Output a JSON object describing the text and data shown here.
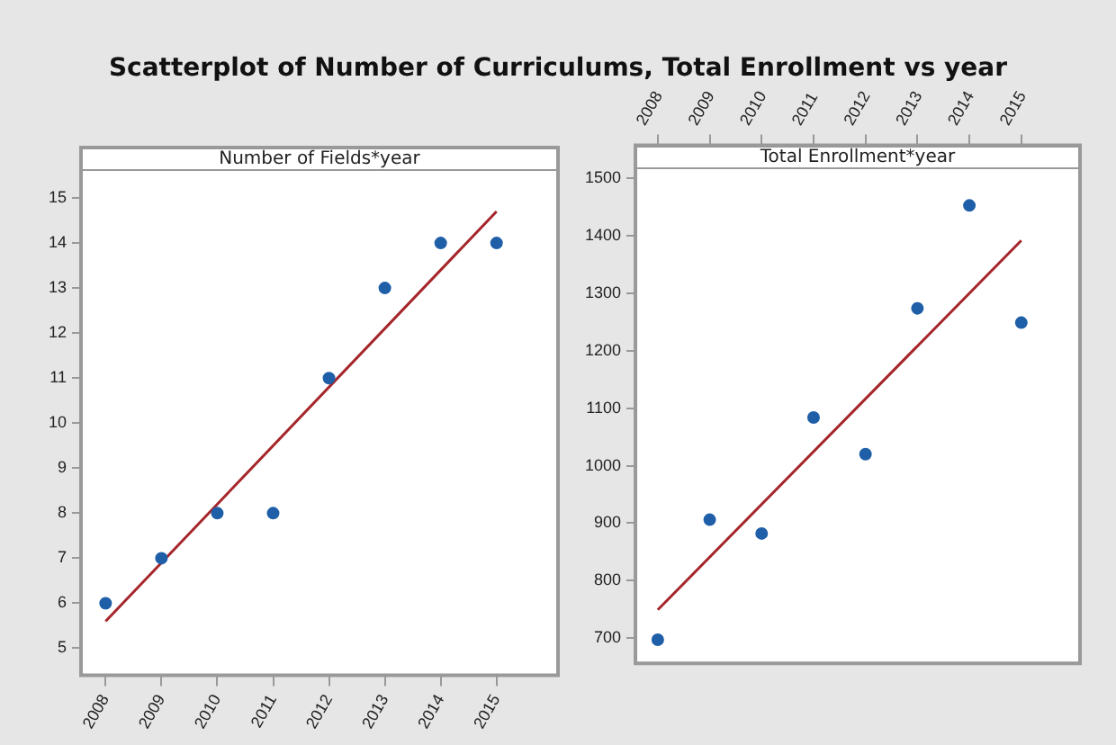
{
  "chart_data": [
    {
      "type": "scatter",
      "title": "Scatterplot of Number of Curriculums, Total Enrollment vs year",
      "subtitle": "Number of Fields*year",
      "xlim": [
        2007.56,
        2016.1
      ],
      "xticks": [
        2008,
        2009,
        2010,
        2011,
        2012,
        2013,
        2014,
        2015
      ],
      "ylim": [
        4.4,
        15.6
      ],
      "yticks": [
        5,
        6,
        7,
        8,
        9,
        10,
        11,
        12,
        13,
        14,
        15
      ],
      "grid": false,
      "legend": false,
      "marker": "circle",
      "series": [
        {
          "color": "#1f5fa8",
          "x": [
            2008,
            2009,
            2010,
            2011,
            2012,
            2013,
            2014,
            2015
          ],
          "values": [
            6,
            7,
            8,
            8,
            11,
            13,
            14,
            14
          ]
        },
        {
          "type": "line",
          "marker": "none",
          "color": "#a5262a",
          "x": [
            2008,
            2015
          ],
          "values": [
            5.6,
            14.7
          ]
        }
      ]
    },
    {
      "type": "scatter",
      "subtitle": "Total Enrollment*year",
      "xlim": [
        2007.57,
        2016.13
      ],
      "xticks": [
        2008,
        2009,
        2010,
        2011,
        2012,
        2013,
        2014,
        2015
      ],
      "ylim": [
        656,
        1517
      ],
      "yticks": [
        700,
        800,
        900,
        1000,
        1100,
        1200,
        1300,
        1400,
        1500
      ],
      "grid": false,
      "legend": false,
      "marker": "circle",
      "series": [
        {
          "color": "#1f5fa8",
          "x": [
            2008,
            2009,
            2010,
            2011,
            2012,
            2013,
            2014,
            2015
          ],
          "values": [
            697,
            906,
            882,
            1084,
            1020,
            1274,
            1453,
            1249
          ]
        },
        {
          "type": "line",
          "marker": "none",
          "color": "#a5262a",
          "x": [
            2008,
            2015
          ],
          "values": [
            749,
            1392
          ]
        }
      ]
    }
  ]
}
